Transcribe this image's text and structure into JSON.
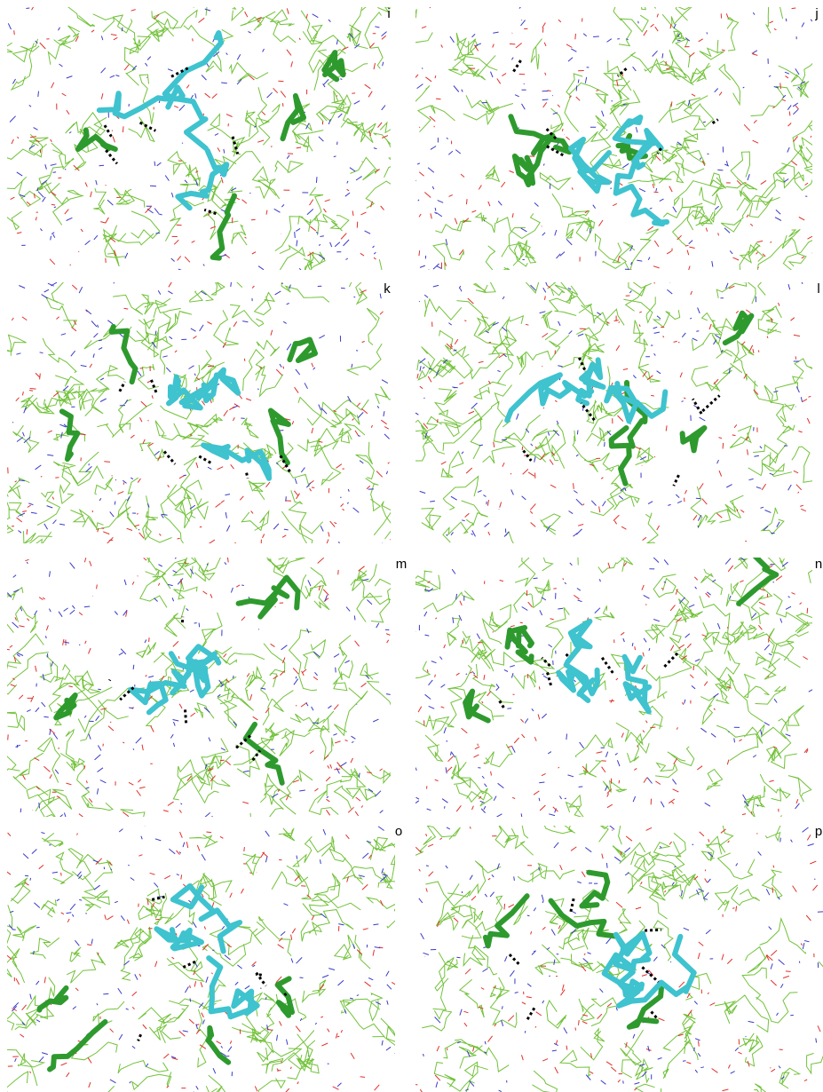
{
  "panels": [
    {
      "label": "i"
    },
    {
      "label": "j"
    },
    {
      "label": "k"
    },
    {
      "label": "l"
    },
    {
      "label": "m"
    },
    {
      "label": "n"
    },
    {
      "label": "o"
    },
    {
      "label": "p"
    }
  ]
}
